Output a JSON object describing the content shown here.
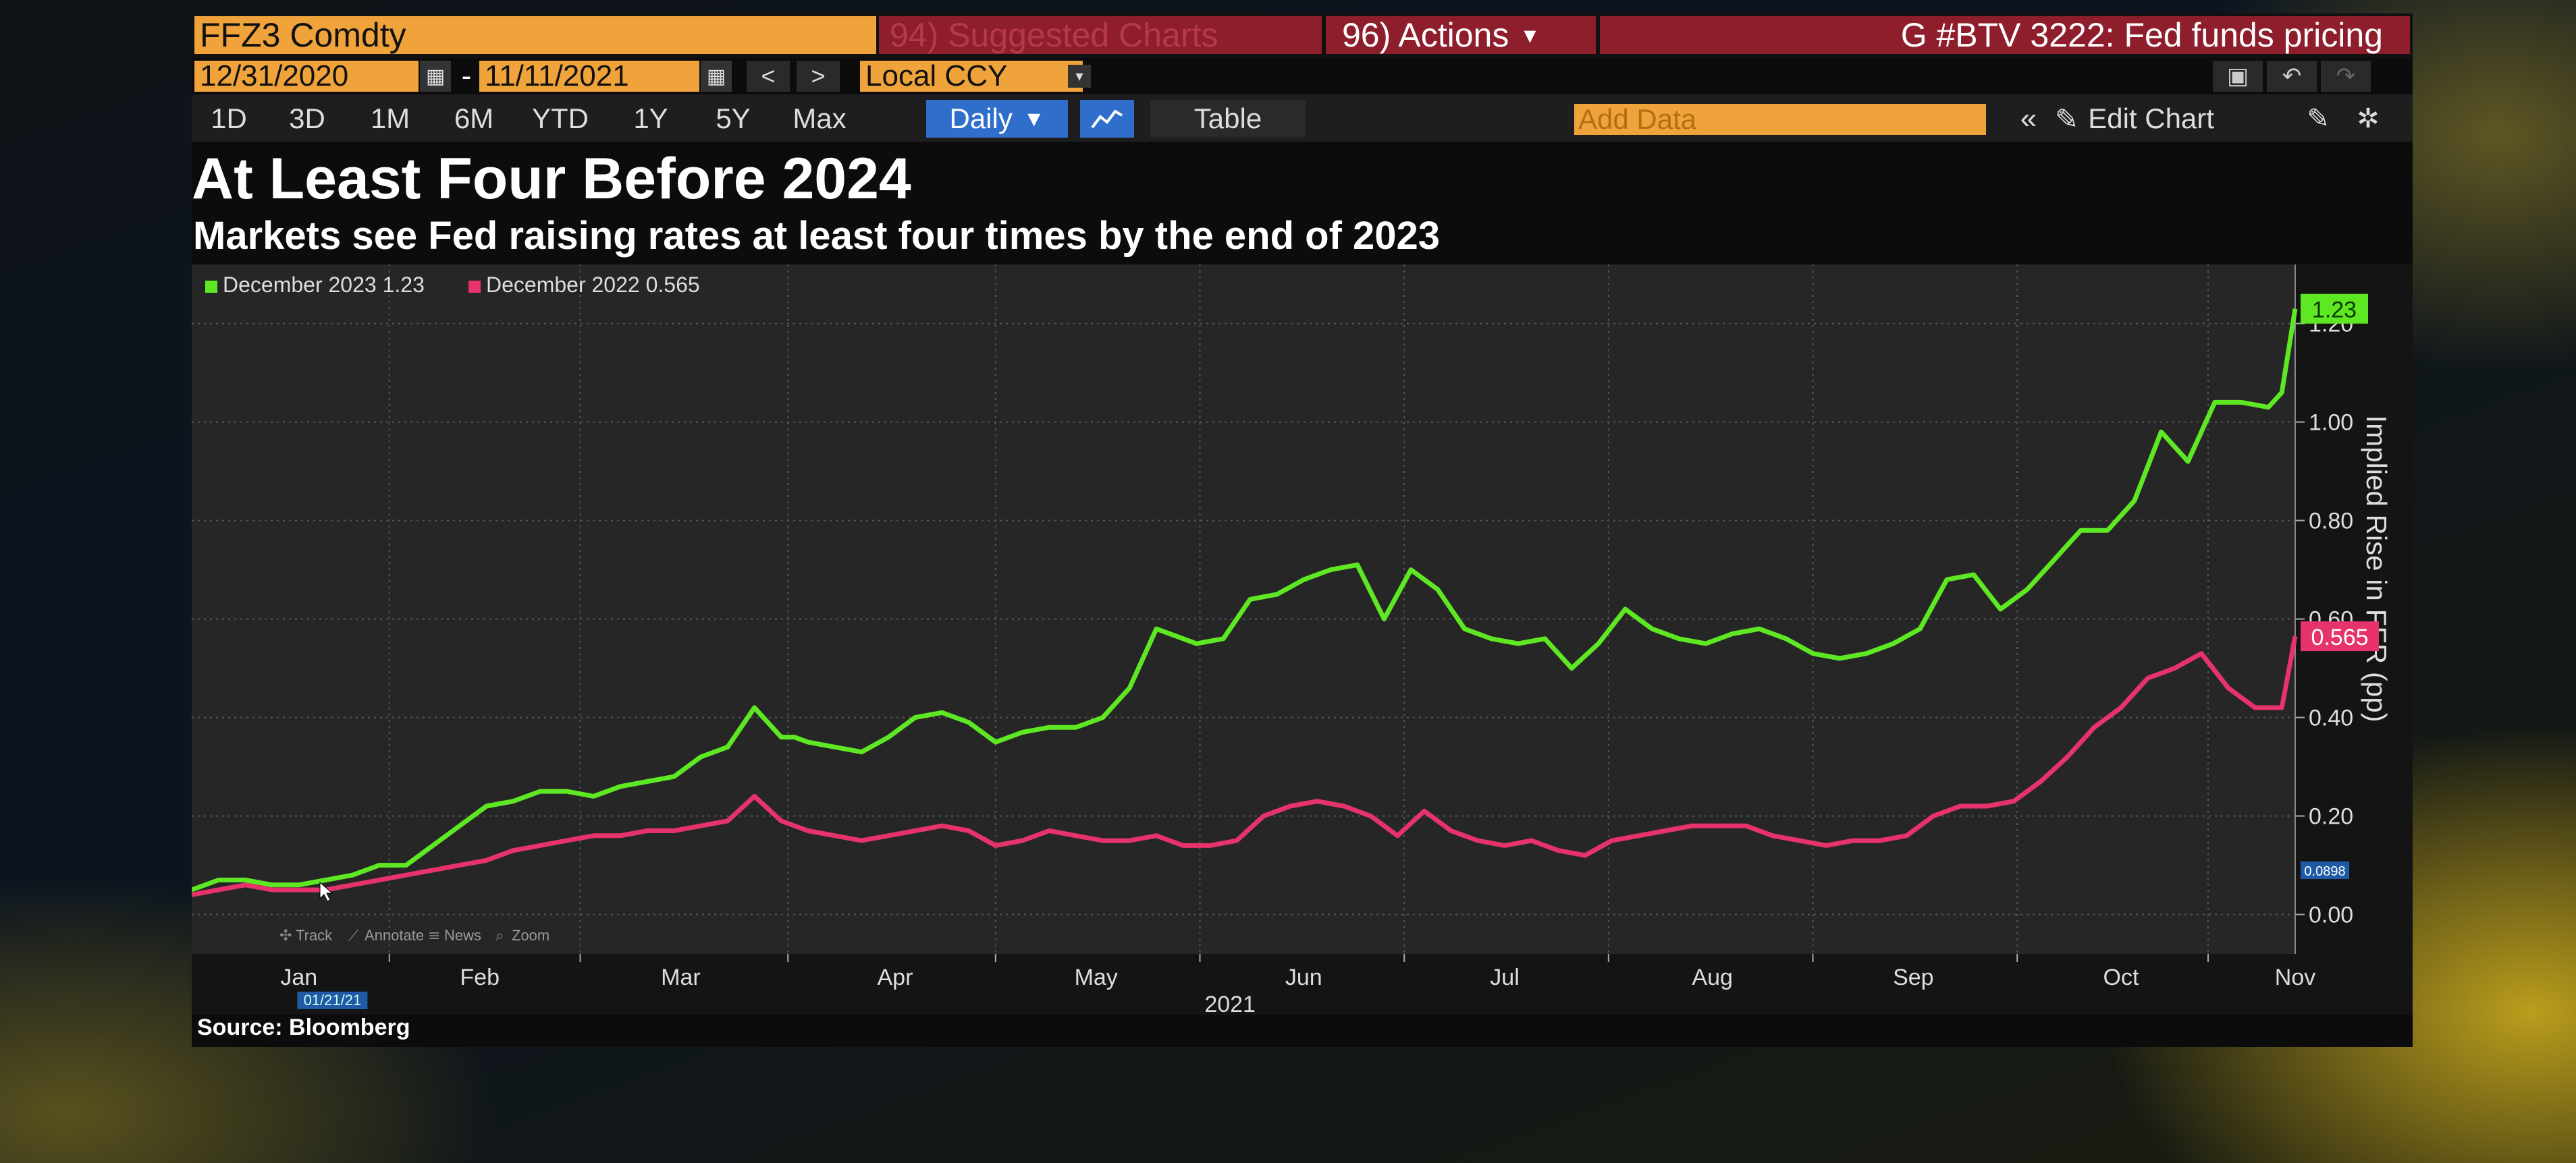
{
  "header": {
    "ticker": "FFZ3 Comdty",
    "suggested_charts": "94) Suggested Charts",
    "actions": "96) Actions",
    "actions_caret": "▾",
    "chart_name": "G #BTV 3222: Fed funds pricing"
  },
  "range": {
    "start_date": "12/31/2020",
    "separator": "-",
    "end_date": "11/11/2021",
    "currency": "Local CCY"
  },
  "toolbar": {
    "periods": [
      "1D",
      "3D",
      "1M",
      "6M",
      "YTD",
      "1Y",
      "5Y",
      "Max"
    ],
    "frequency": "Daily",
    "frequency_caret": "▼",
    "table_label": "Table",
    "add_data_placeholder": "Add Data",
    "edit_chart_label": "Edit Chart"
  },
  "icons": {
    "calendar": "calendar-icon",
    "prev": "chevron-left-icon",
    "next": "chevron-right-icon",
    "line_chart": "line-chart-icon",
    "double_chevron": "double-chevron-left-icon",
    "pencil": "pencil-icon",
    "settings": "gear-icon",
    "presentation": "presentation-icon",
    "undo": "undo-icon",
    "redo": "redo-icon"
  },
  "colors": {
    "orange": "#f0a33a",
    "red_header": "#8e1e2c",
    "blue_toggle": "#2f6ecb",
    "series_dec2023": "#5ee823",
    "series_dec2022": "#e6336b",
    "chart_bg": "#262626"
  },
  "chart_data": {
    "type": "line",
    "title": "At Least Four Before 2024",
    "subtitle": "Markets see Fed raising rates at least four times by the end of 2023",
    "ylabel": "Implied Rise in FFR (pp)",
    "xlabel": "2021",
    "ylim": [
      -0.08,
      1.32
    ],
    "yticks": [
      0.0,
      0.2,
      0.4,
      0.6,
      0.8,
      1.0,
      1.2
    ],
    "ytick_labels": [
      "0.00",
      "0.20",
      "0.40",
      "0.60",
      "0.80",
      "1.00",
      "1.20"
    ],
    "xlim": [
      0,
      314
    ],
    "xticks": [
      16,
      43,
      73,
      105,
      135,
      166,
      196,
      227,
      257,
      288,
      314
    ],
    "xtick_labels": [
      "Jan",
      "Feb",
      "Mar",
      "Apr",
      "May",
      "Jun",
      "Jul",
      "Aug",
      "Sep",
      "Oct",
      "Nov"
    ],
    "xtick_units": "days from 12/31/2020",
    "grid": true,
    "legend_position": "top-left",
    "series": [
      {
        "name": "December 2023 1.23",
        "color": "#5ee823",
        "last_value_label": "1.23",
        "x": [
          0,
          4,
          8,
          12,
          16,
          20,
          24,
          28,
          32,
          36,
          40,
          44,
          48,
          52,
          56,
          60,
          64,
          68,
          72,
          76,
          80,
          84,
          88,
          90,
          92,
          96,
          100,
          104,
          108,
          112,
          116,
          120,
          124,
          128,
          132,
          136,
          140,
          144,
          148,
          150,
          154,
          158,
          162,
          166,
          170,
          174,
          178,
          182,
          186,
          190,
          194,
          198,
          202,
          206,
          210,
          214,
          218,
          222,
          226,
          230,
          234,
          238,
          242,
          246,
          250,
          254,
          258,
          262,
          266,
          270,
          274,
          278,
          282,
          286,
          290,
          294,
          298,
          302,
          306,
          310,
          312,
          314
        ],
        "y": [
          0.05,
          0.07,
          0.07,
          0.06,
          0.06,
          0.07,
          0.08,
          0.1,
          0.1,
          0.14,
          0.18,
          0.22,
          0.23,
          0.25,
          0.25,
          0.24,
          0.26,
          0.27,
          0.28,
          0.32,
          0.34,
          0.42,
          0.36,
          0.36,
          0.35,
          0.34,
          0.33,
          0.36,
          0.4,
          0.41,
          0.39,
          0.35,
          0.37,
          0.38,
          0.38,
          0.4,
          0.46,
          0.58,
          0.56,
          0.55,
          0.56,
          0.64,
          0.65,
          0.68,
          0.7,
          0.71,
          0.6,
          0.7,
          0.66,
          0.58,
          0.56,
          0.55,
          0.56,
          0.5,
          0.55,
          0.62,
          0.58,
          0.56,
          0.55,
          0.57,
          0.58,
          0.56,
          0.53,
          0.52,
          0.53,
          0.55,
          0.58,
          0.68,
          0.69,
          0.62,
          0.66,
          0.72,
          0.78,
          0.78,
          0.84,
          0.98,
          0.92,
          1.04,
          1.04,
          1.03,
          1.06,
          1.23
        ]
      },
      {
        "name": "December 2022 0.565",
        "color": "#e6336b",
        "last_value_label": "0.565",
        "x": [
          0,
          4,
          8,
          12,
          16,
          20,
          24,
          28,
          32,
          36,
          40,
          44,
          48,
          52,
          56,
          60,
          64,
          68,
          72,
          76,
          80,
          84,
          88,
          92,
          96,
          100,
          104,
          108,
          112,
          116,
          120,
          124,
          128,
          132,
          136,
          140,
          144,
          148,
          152,
          156,
          160,
          164,
          168,
          172,
          176,
          180,
          184,
          188,
          192,
          196,
          200,
          204,
          208,
          212,
          216,
          220,
          224,
          228,
          232,
          236,
          240,
          244,
          248,
          252,
          256,
          260,
          264,
          268,
          272,
          276,
          280,
          284,
          288,
          292,
          296,
          300,
          304,
          308,
          312,
          314
        ],
        "y": [
          0.04,
          0.05,
          0.06,
          0.05,
          0.05,
          0.05,
          0.06,
          0.07,
          0.08,
          0.09,
          0.1,
          0.11,
          0.13,
          0.14,
          0.15,
          0.16,
          0.16,
          0.17,
          0.17,
          0.18,
          0.19,
          0.24,
          0.19,
          0.17,
          0.16,
          0.15,
          0.16,
          0.17,
          0.18,
          0.17,
          0.14,
          0.15,
          0.17,
          0.16,
          0.15,
          0.15,
          0.16,
          0.14,
          0.14,
          0.15,
          0.2,
          0.22,
          0.23,
          0.22,
          0.2,
          0.16,
          0.21,
          0.17,
          0.15,
          0.14,
          0.15,
          0.13,
          0.12,
          0.15,
          0.16,
          0.17,
          0.18,
          0.18,
          0.18,
          0.16,
          0.15,
          0.14,
          0.15,
          0.15,
          0.16,
          0.2,
          0.22,
          0.22,
          0.23,
          0.27,
          0.32,
          0.38,
          0.42,
          0.48,
          0.5,
          0.53,
          0.46,
          0.42,
          0.42,
          0.565
        ]
      }
    ],
    "cursor_value_label": "0.0898",
    "cursor_date_label": "01/21/21",
    "chart_tools": [
      "Track",
      "Annotate",
      "News",
      "Zoom"
    ]
  },
  "footer": {
    "source": "Source: Bloomberg"
  }
}
